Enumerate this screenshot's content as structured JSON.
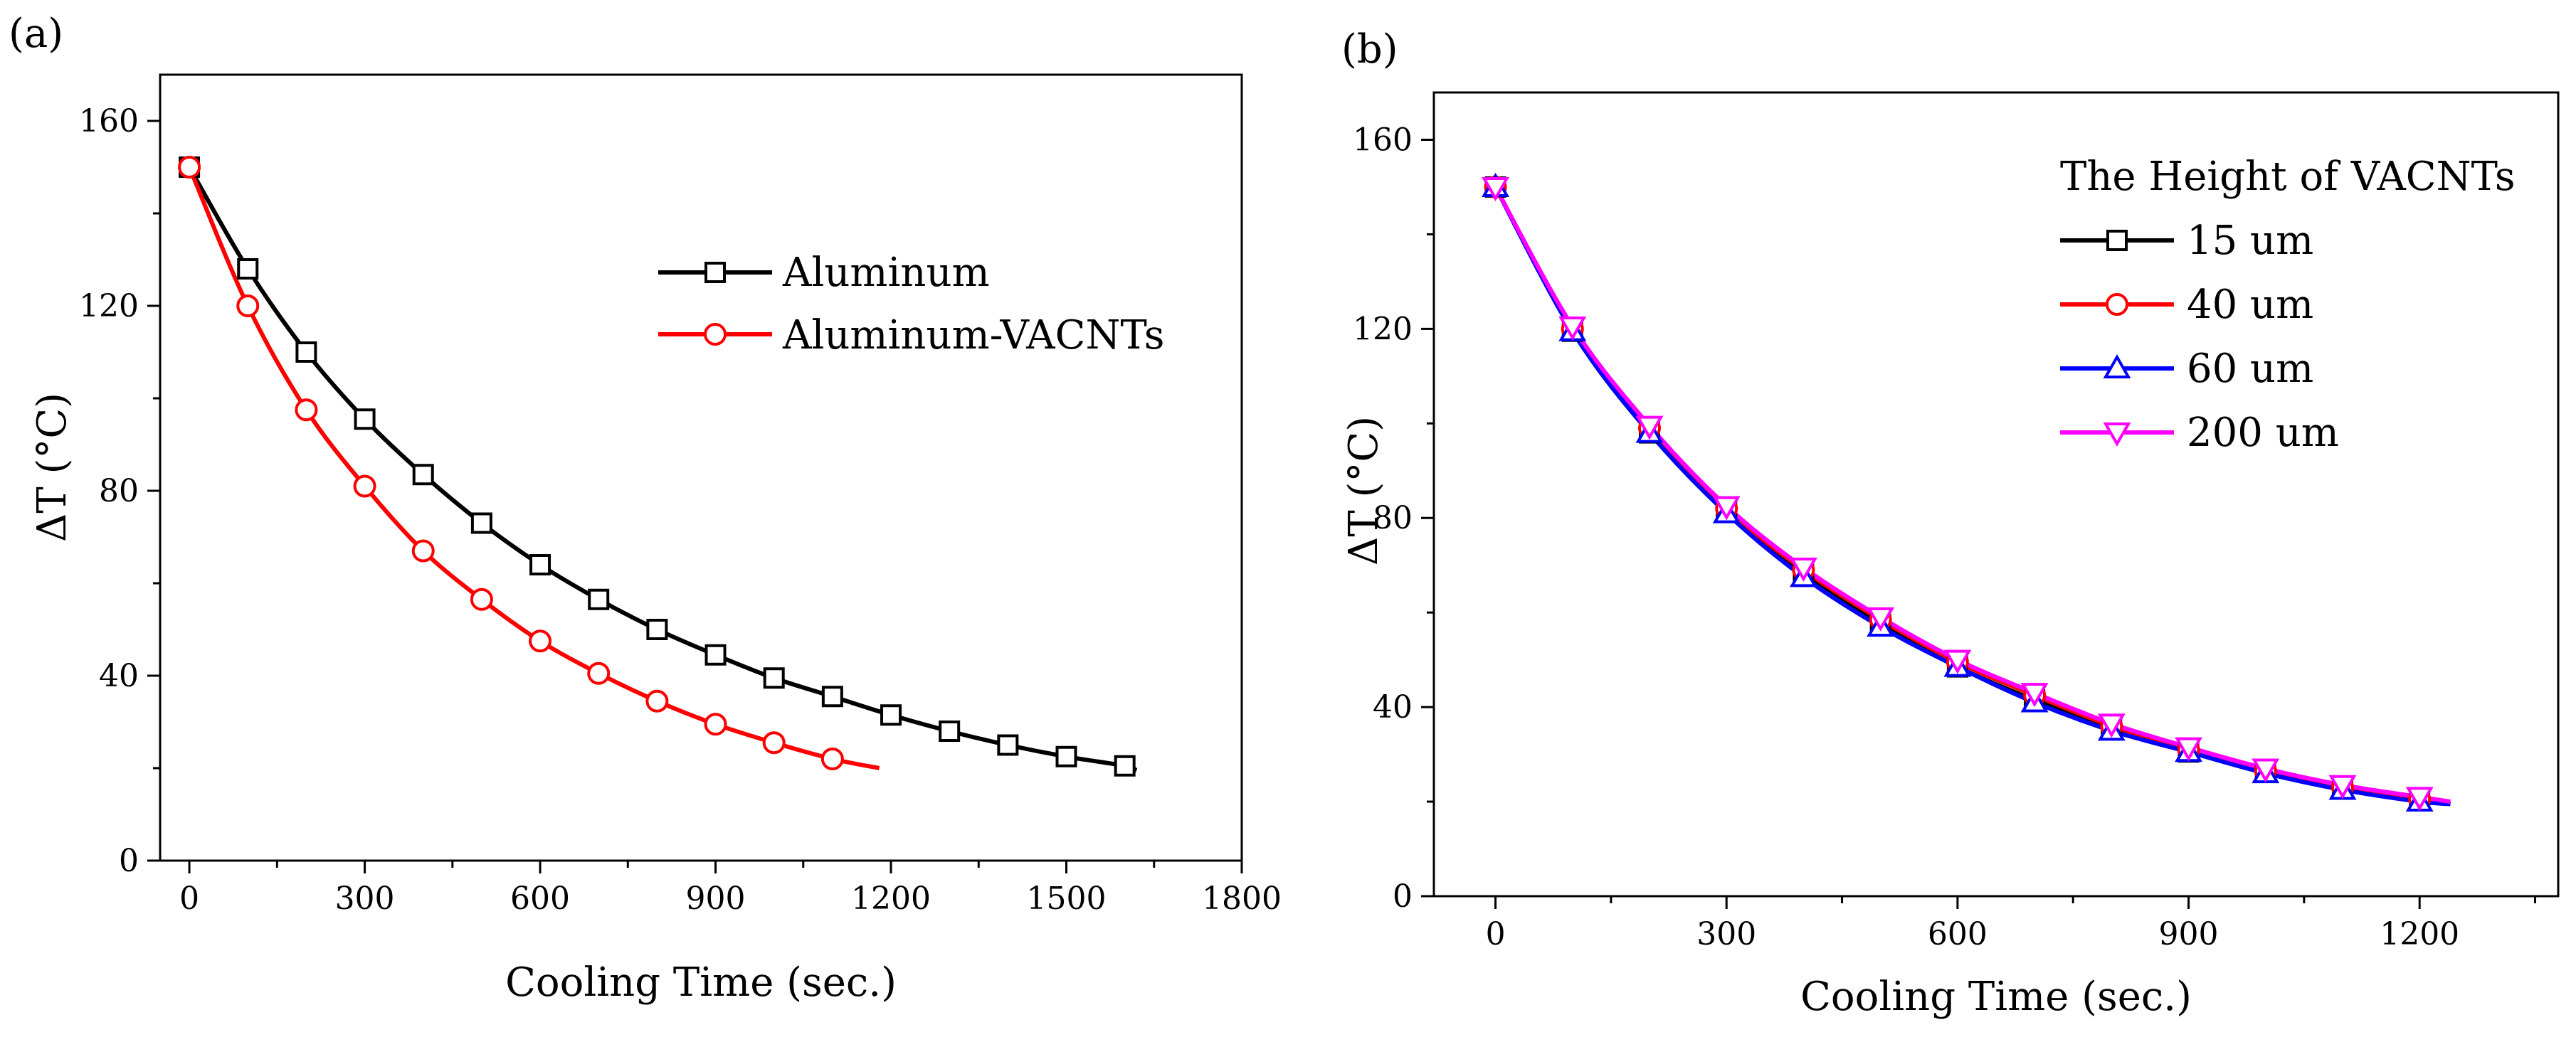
{
  "chart_data": [
    {
      "panel_label": "(a)",
      "type": "line",
      "xlabel": "Cooling Time (sec.)",
      "ylabel": "ΔT (°C)",
      "xlim": [
        -50,
        1800
      ],
      "ylim": [
        0,
        170
      ],
      "xticks": [
        0,
        300,
        600,
        900,
        1200,
        1500,
        1800
      ],
      "yticks": [
        0,
        40,
        80,
        120,
        160
      ],
      "legend_position": "top-right",
      "series": [
        {
          "name": "Aluminum",
          "color": "#000000",
          "marker": "square",
          "x": [
            0,
            100,
            200,
            300,
            400,
            500,
            600,
            700,
            800,
            900,
            1000,
            1100,
            1200,
            1300,
            1400,
            1500,
            1600
          ],
          "y": [
            150,
            128,
            110,
            95.5,
            83.5,
            73,
            64,
            56.5,
            50,
            44.5,
            39.5,
            35.5,
            31.5,
            28,
            25,
            22.5,
            20.5
          ],
          "line_end": [
            1620,
            19.5
          ]
        },
        {
          "name": "Aluminum-VACNTs",
          "color": "#ff0000",
          "marker": "circle",
          "x": [
            0,
            100,
            200,
            300,
            400,
            500,
            600,
            700,
            800,
            900,
            1000,
            1100
          ],
          "y": [
            150,
            120,
            97.5,
            81,
            67,
            56.5,
            47.5,
            40.5,
            34.5,
            29.5,
            25.5,
            22
          ],
          "line_end": [
            1180,
            20
          ]
        }
      ]
    },
    {
      "panel_label": "(b)",
      "type": "line",
      "xlabel": "Cooling Time (sec.)",
      "ylabel": "ΔT (°C)",
      "xlim": [
        -80,
        1380
      ],
      "ylim": [
        0,
        170
      ],
      "xticks": [
        0,
        300,
        600,
        900,
        1200
      ],
      "yticks": [
        0,
        40,
        80,
        120,
        160
      ],
      "legend_title": "The Height of  VACNTs",
      "legend_position": "top-right",
      "series": [
        {
          "name": "15 um",
          "color": "#000000",
          "marker": "square",
          "x": [
            0,
            100,
            200,
            300,
            400,
            500,
            600,
            700,
            800,
            900,
            1000,
            1100,
            1200
          ],
          "y": [
            150,
            119.5,
            98,
            81.5,
            68,
            57.5,
            48.5,
            41.5,
            35.5,
            30.5,
            26.5,
            23,
            20.5
          ],
          "line_end": [
            1240,
            19.5
          ]
        },
        {
          "name": "40 um",
          "color": "#ff0000",
          "marker": "circle",
          "x": [
            0,
            100,
            200,
            300,
            400,
            500,
            600,
            700,
            800,
            900,
            1000,
            1100,
            1200
          ],
          "y": [
            150,
            120,
            99,
            82,
            69,
            58.5,
            49.5,
            42.5,
            36,
            31,
            26.5,
            23,
            20.5
          ],
          "line_end": [
            1240,
            19.5
          ]
        },
        {
          "name": "60 um",
          "color": "#0000ff",
          "marker": "triangle-up",
          "x": [
            0,
            100,
            200,
            300,
            400,
            500,
            600,
            700,
            800,
            900,
            1000,
            1100,
            1200
          ],
          "y": [
            150,
            119.5,
            98,
            81,
            67.5,
            57,
            48.5,
            41,
            35,
            30.5,
            26,
            22.5,
            20
          ],
          "line_end": [
            1240,
            19.5
          ]
        },
        {
          "name": "200 um",
          "color": "#ff00ff",
          "marker": "triangle-down",
          "x": [
            0,
            100,
            200,
            300,
            400,
            500,
            600,
            700,
            800,
            900,
            1000,
            1100,
            1200
          ],
          "y": [
            150,
            120.5,
            99.5,
            82.5,
            69.5,
            59,
            50,
            43,
            36.5,
            31.5,
            27,
            23.5,
            21
          ],
          "line_end": [
            1240,
            20
          ]
        }
      ]
    }
  ]
}
